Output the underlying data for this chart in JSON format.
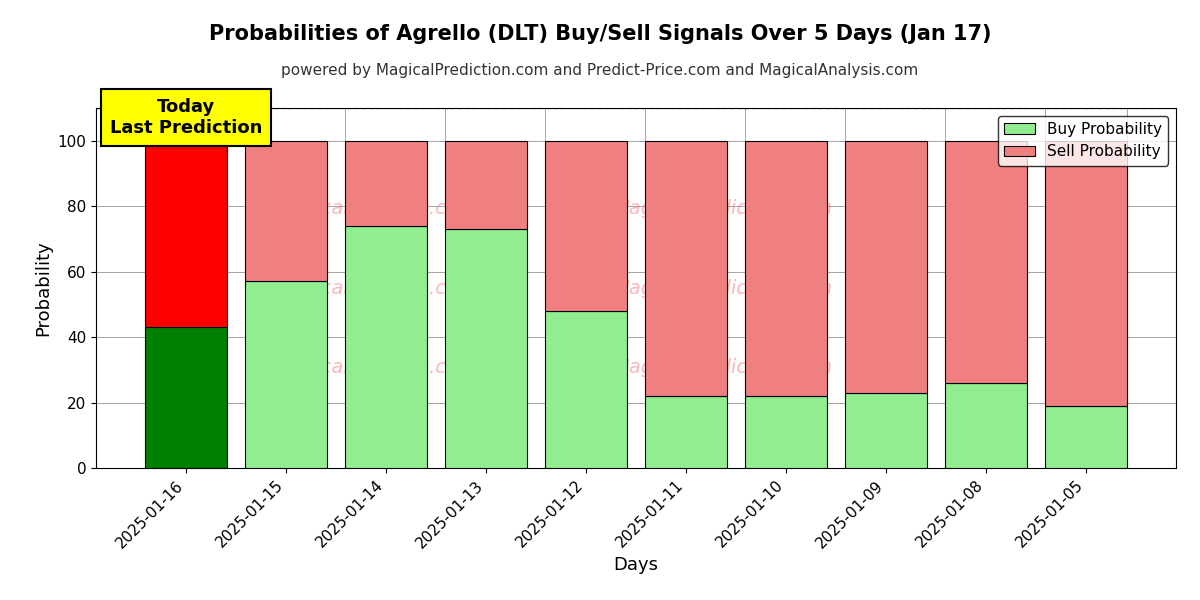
{
  "title": "Probabilities of Agrello (DLT) Buy/Sell Signals Over 5 Days (Jan 17)",
  "subtitle": "powered by MagicalPrediction.com and Predict-Price.com and MagicalAnalysis.com",
  "xlabel": "Days",
  "ylabel": "Probability",
  "categories": [
    "2025-01-16",
    "2025-01-15",
    "2025-01-14",
    "2025-01-13",
    "2025-01-12",
    "2025-01-11",
    "2025-01-10",
    "2025-01-09",
    "2025-01-08",
    "2025-01-05"
  ],
  "buy_values": [
    43,
    57,
    74,
    73,
    48,
    22,
    22,
    23,
    26,
    19
  ],
  "sell_values": [
    57,
    43,
    26,
    27,
    52,
    78,
    78,
    77,
    74,
    81
  ],
  "today_buy_color": "#008000",
  "today_sell_color": "#ff0000",
  "normal_buy_color": "#90EE90",
  "normal_sell_color": "#F08080",
  "bar_edge_color": "#000000",
  "background_color": "#ffffff",
  "plot_bg_color": "#ffffff",
  "watermark_color": "#F08080",
  "ylim": [
    0,
    110
  ],
  "yticks": [
    0,
    20,
    40,
    60,
    80,
    100
  ],
  "dashed_line_y": 110,
  "annotation_text": "Today\nLast Prediction",
  "annotation_bg": "#ffff00",
  "legend_buy_label": "Buy Probability",
  "legend_sell_label": "Sell Probability",
  "title_fontsize": 15,
  "subtitle_fontsize": 11,
  "label_fontsize": 13,
  "tick_fontsize": 11,
  "legend_fontsize": 11
}
